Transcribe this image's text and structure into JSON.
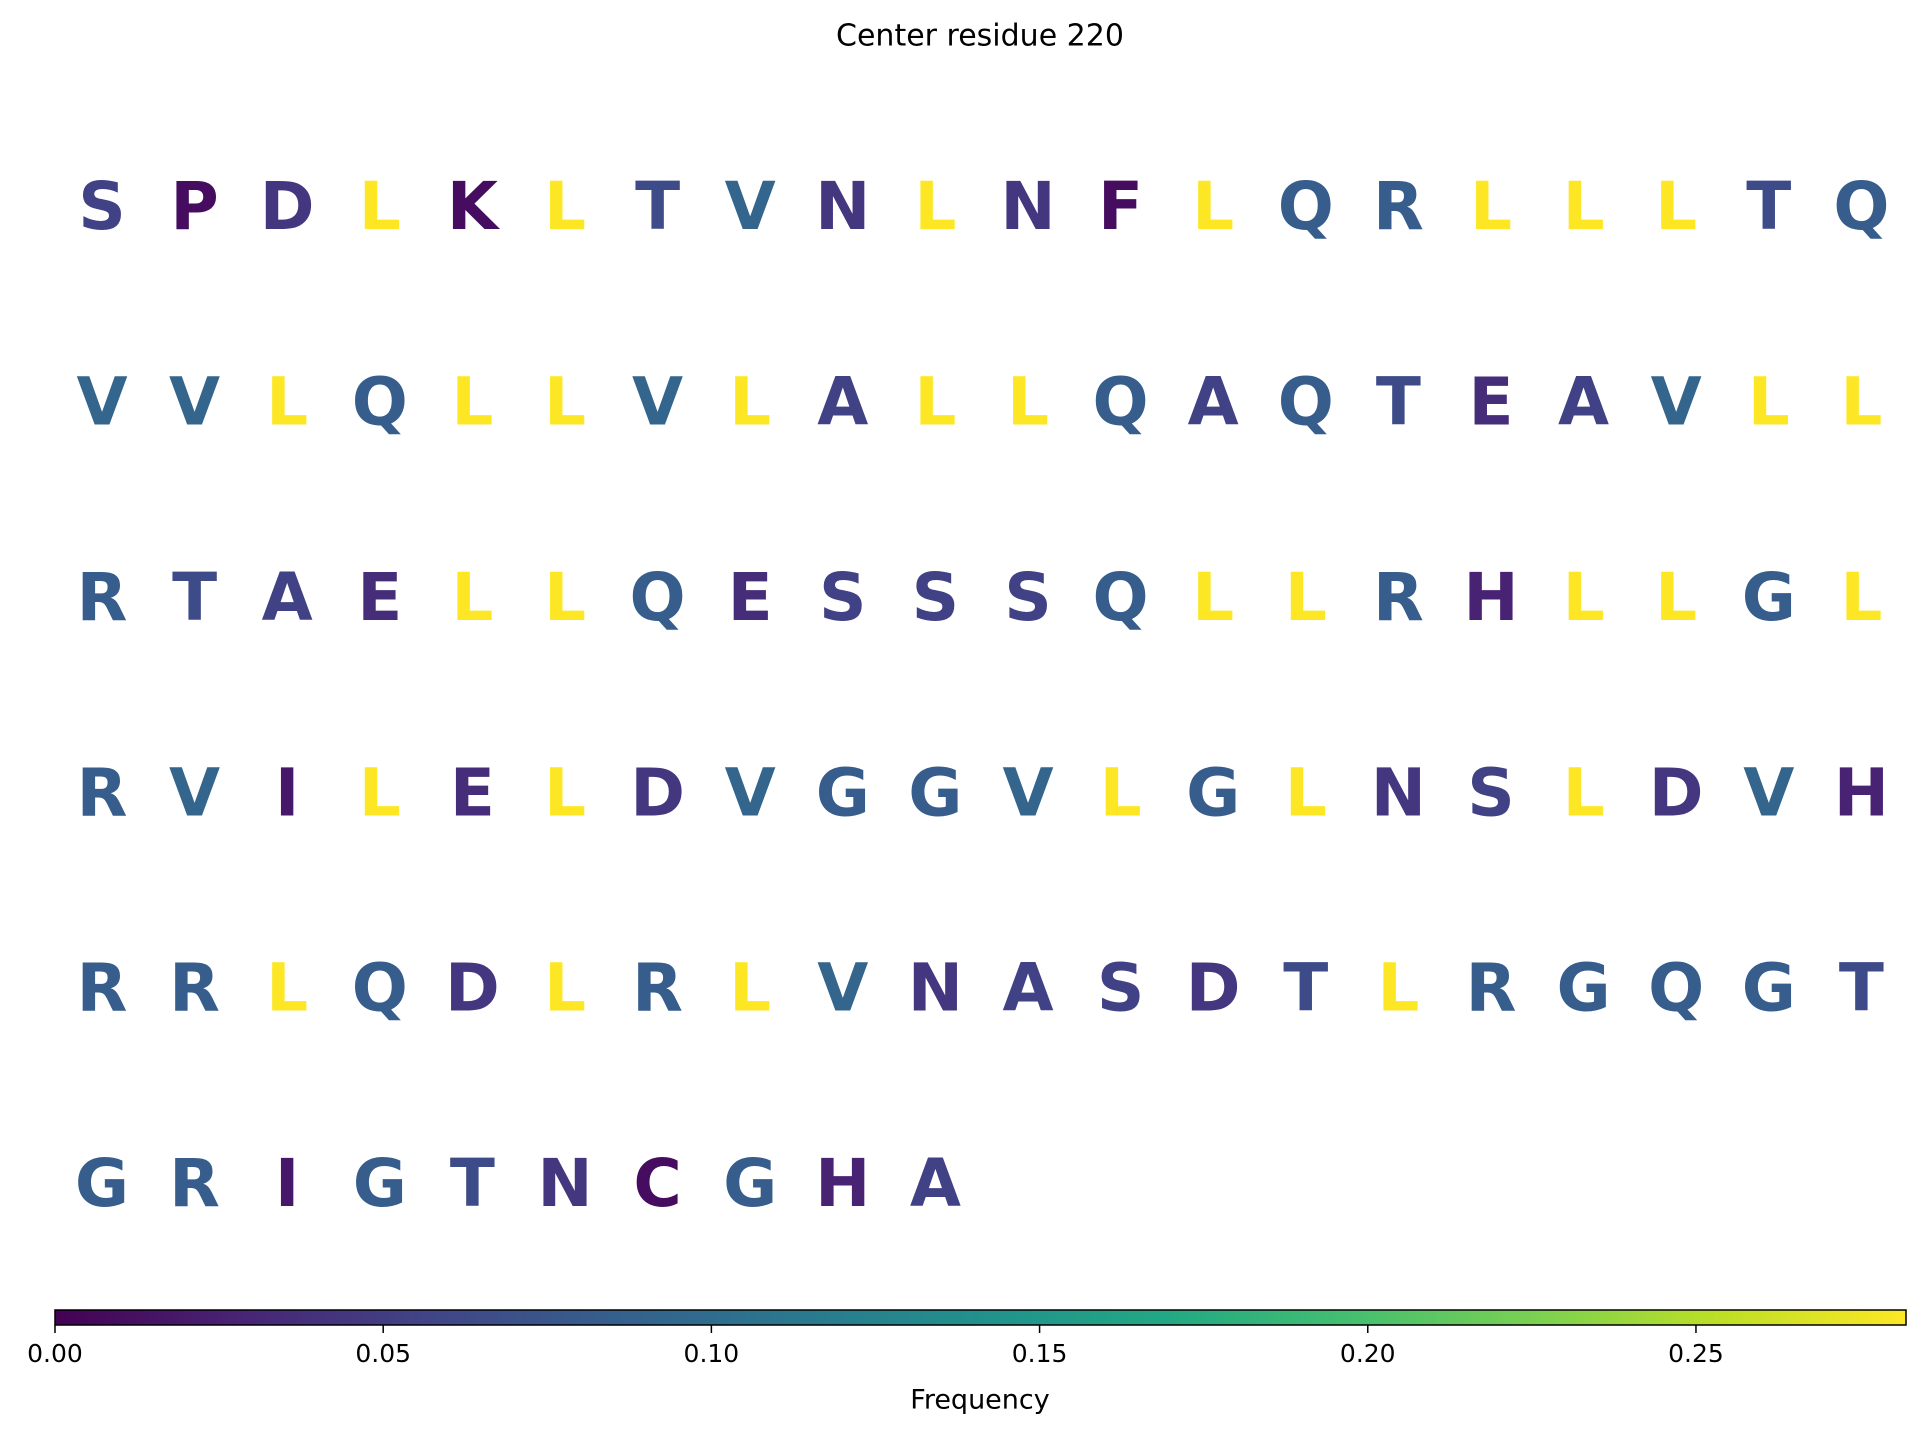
{
  "chart_data": {
    "type": "sequence-logo",
    "title": "Center residue 220",
    "colorbar_label": "Frequency",
    "colormap": "viridis",
    "clim": [
      0,
      0.282
    ],
    "cticks": [
      {
        "value": 0,
        "label": "0.00"
      },
      {
        "value": 0.05,
        "label": "0.05"
      },
      {
        "value": 0.1,
        "label": "0.10"
      },
      {
        "value": 0.15,
        "label": "0.15"
      },
      {
        "value": 0.2,
        "label": "0.20"
      },
      {
        "value": 0.25,
        "label": "0.25"
      }
    ],
    "letters": [
      "S",
      "P",
      "D",
      "L",
      "K",
      "L",
      "T",
      "V",
      "N",
      "L",
      "N",
      "F",
      "L",
      "Q",
      "R",
      "L",
      "L",
      "L",
      "T",
      "Q",
      "V",
      "V",
      "L",
      "Q",
      "L",
      "L",
      "V",
      "L",
      "A",
      "L",
      "L",
      "Q",
      "A",
      "Q",
      "T",
      "E",
      "A",
      "V",
      "L",
      "L",
      "R",
      "T",
      "A",
      "E",
      "L",
      "L",
      "Q",
      "E",
      "S",
      "S",
      "S",
      "Q",
      "L",
      "L",
      "R",
      "H",
      "L",
      "L",
      "G",
      "L",
      "R",
      "V",
      "I",
      "L",
      "E",
      "L",
      "D",
      "V",
      "G",
      "G",
      "V",
      "L",
      "G",
      "L",
      "N",
      "S",
      "L",
      "D",
      "V",
      "H",
      "R",
      "R",
      "L",
      "Q",
      "D",
      "L",
      "R",
      "L",
      "V",
      "N",
      "A",
      "S",
      "D",
      "T",
      "L",
      "R",
      "G",
      "Q",
      "G",
      "T",
      "G",
      "R",
      "I",
      "G",
      "T",
      "N",
      "C",
      "G",
      "H",
      "A"
    ],
    "values": [
      0.055,
      0.009,
      0.045,
      0.282,
      0.009,
      0.282,
      0.064,
      0.091,
      0.045,
      0.282,
      0.045,
      0.009,
      0.282,
      0.082,
      0.082,
      0.282,
      0.282,
      0.282,
      0.064,
      0.082,
      0.091,
      0.091,
      0.282,
      0.082,
      0.282,
      0.282,
      0.091,
      0.282,
      0.055,
      0.282,
      0.282,
      0.082,
      0.055,
      0.082,
      0.064,
      0.036,
      0.055,
      0.091,
      0.282,
      0.282,
      0.082,
      0.064,
      0.055,
      0.036,
      0.282,
      0.282,
      0.082,
      0.036,
      0.055,
      0.055,
      0.055,
      0.082,
      0.282,
      0.282,
      0.082,
      0.027,
      0.282,
      0.282,
      0.082,
      0.282,
      0.082,
      0.091,
      0.018,
      0.282,
      0.036,
      0.282,
      0.045,
      0.091,
      0.082,
      0.082,
      0.091,
      0.282,
      0.082,
      0.282,
      0.045,
      0.055,
      0.282,
      0.045,
      0.091,
      0.027,
      0.082,
      0.082,
      0.282,
      0.082,
      0.045,
      0.282,
      0.082,
      0.282,
      0.091,
      0.045,
      0.055,
      0.055,
      0.045,
      0.064,
      0.282,
      0.082,
      0.082,
      0.082,
      0.082,
      0.064,
      0.082,
      0.082,
      0.018,
      0.082,
      0.064,
      0.045,
      0.009,
      0.082,
      0.027,
      0.055
    ]
  }
}
